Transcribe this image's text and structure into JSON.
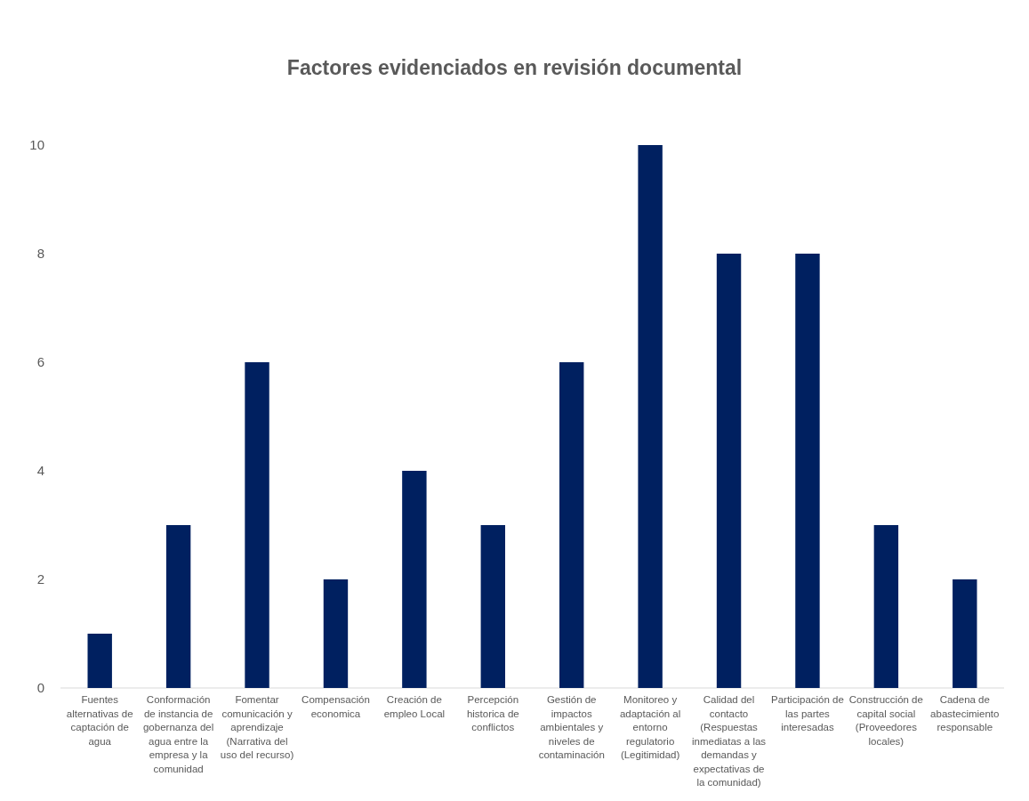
{
  "chart_data": {
    "type": "bar",
    "title": "Factores evidenciados en revisión documental",
    "categories": [
      "Fuentes alternativas de captación de agua",
      "Conformación de instancia de gobernanza del agua entre la empresa y la comunidad",
      "Fomentar comunicación y aprendizaje (Narrativa del uso del recurso)",
      "Compensación economica",
      "Creación de empleo Local",
      "Percepción historica de conflictos",
      "Gestión de impactos ambientales y niveles de contaminación",
      "Monitoreo y adaptación al entorno regulatorio (Legitimidad)",
      "Calidad del contacto (Respuestas inmediatas a las demandas y expectativas de la comunidad)",
      "Participación de las partes interesadas",
      "Construcción de capital social (Proveedores locales)",
      "Cadena de abastecimiento responsable"
    ],
    "values": [
      1,
      3,
      6,
      2,
      4,
      3,
      6,
      10,
      8,
      8,
      3,
      2
    ],
    "color": "#002060",
    "ylim": [
      0,
      10
    ],
    "yticks": [
      0,
      2,
      4,
      6,
      8,
      10
    ],
    "grid": false
  }
}
